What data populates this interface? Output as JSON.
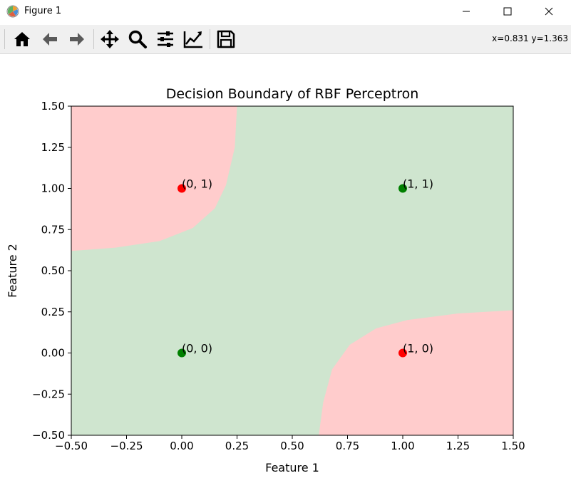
{
  "window": {
    "title": "Figure 1",
    "controls": [
      "minimize",
      "maximize",
      "close"
    ]
  },
  "toolbar": {
    "tools": [
      {
        "name": "home-icon",
        "label": "Home"
      },
      {
        "name": "back-icon",
        "label": "Back"
      },
      {
        "name": "forward-icon",
        "label": "Forward"
      },
      {
        "name": "pan-icon",
        "label": "Pan"
      },
      {
        "name": "zoom-icon",
        "label": "Zoom"
      },
      {
        "name": "subplots-icon",
        "label": "Configure subplots"
      },
      {
        "name": "edit-axes-icon",
        "label": "Edit axis"
      },
      {
        "name": "save-icon",
        "label": "Save"
      }
    ],
    "coords": "x=0.831 y=1.363"
  },
  "chart_data": {
    "type": "scatter",
    "title": "Decision Boundary of RBF Perceptron",
    "xlabel": "Feature 1",
    "ylabel": "Feature 2",
    "xlim": [
      -0.5,
      1.5
    ],
    "ylim": [
      -0.5,
      1.5
    ],
    "xticks": [
      "−0.50",
      "−0.25",
      "0.00",
      "0.25",
      "0.50",
      "0.75",
      "1.00",
      "1.25",
      "1.50"
    ],
    "yticks": [
      "−0.50",
      "−0.25",
      "0.00",
      "0.25",
      "0.50",
      "0.75",
      "1.00",
      "1.25",
      "1.50"
    ],
    "grid": false,
    "points": [
      {
        "x": 0,
        "y": 0,
        "label": "(0, 0)",
        "color": "#008000"
      },
      {
        "x": 0,
        "y": 1,
        "label": "(0, 1)",
        "color": "#ff0000"
      },
      {
        "x": 1,
        "y": 0,
        "label": "(1, 0)",
        "color": "#ff0000"
      },
      {
        "x": 1,
        "y": 1,
        "label": "(1, 1)",
        "color": "#008000"
      }
    ],
    "regions": {
      "background_color": "#cfe5cf",
      "class_regions_color": "#ffcccc",
      "boundaries": [
        [
          [
            -0.5,
            0.62
          ],
          [
            -0.3,
            0.64
          ],
          [
            -0.1,
            0.68
          ],
          [
            0.05,
            0.76
          ],
          [
            0.15,
            0.88
          ],
          [
            0.2,
            1.02
          ],
          [
            0.24,
            1.25
          ],
          [
            0.25,
            1.5
          ]
        ],
        [
          [
            0.62,
            -0.5
          ],
          [
            0.64,
            -0.3
          ],
          [
            0.68,
            -0.1
          ],
          [
            0.76,
            0.05
          ],
          [
            0.88,
            0.15
          ],
          [
            1.02,
            0.2
          ],
          [
            1.25,
            0.24
          ],
          [
            1.5,
            0.26
          ]
        ]
      ]
    }
  }
}
